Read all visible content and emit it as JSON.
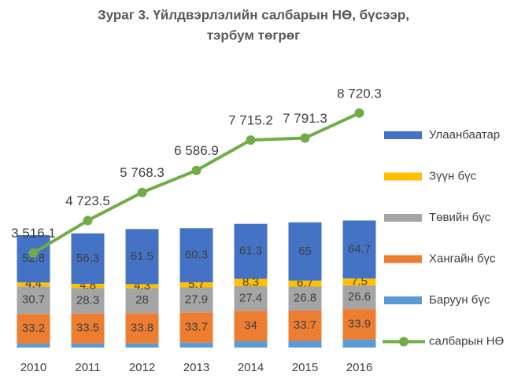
{
  "chart_data": {
    "type": "bar",
    "title": [
      "Зураг 3. Үйлдвэрлэлийн салбарын НӨ, бүсээр,",
      "тэрбум төгрөг"
    ],
    "categories": [
      "2010",
      "2011",
      "2012",
      "2013",
      "2014",
      "2015",
      "2016"
    ],
    "series": [
      {
        "name": "Баруун бүс",
        "color": "#5b9bd5",
        "values": [
          4.3,
          4.5,
          4.6,
          5.5,
          7.0,
          7.5,
          9.0
        ]
      },
      {
        "name": "Хангайн бүс",
        "color": "#ed7d31",
        "values": [
          33.2,
          33.5,
          33.8,
          33.7,
          34.0,
          33.7,
          33.9
        ]
      },
      {
        "name": "Төвийн бүс",
        "color": "#a5a5a5",
        "values": [
          30.7,
          28.3,
          28.0,
          27.9,
          27.4,
          26.8,
          26.6
        ]
      },
      {
        "name": "Зүүн бүс",
        "color": "#ffc000",
        "values": [
          4.4,
          4.8,
          4.3,
          5.7,
          8.3,
          6.7,
          7.5
        ]
      },
      {
        "name": "Улаанбаатар",
        "color": "#4472c4",
        "values": [
          52.8,
          56.3,
          61.5,
          60.3,
          61.3,
          65.0,
          64.7
        ]
      },
      {
        "name": "салбарын НӨ",
        "color": "#70ad47",
        "type": "line",
        "axis": "y2",
        "values": [
          3516.1,
          4723.5,
          5768.3,
          6586.9,
          7715.2,
          7791.3,
          8720.3
        ],
        "value_labels": [
          "3 516.1",
          "4 723.5",
          "5 768.3",
          "6 586.9",
          "7 715.2",
          "7 791.3",
          "8 720.3"
        ]
      }
    ],
    "segment_labels": [
      false,
      true,
      true,
      true,
      true
    ],
    "ylim": [
      0,
      300
    ],
    "y2lim": [
      0,
      10000
    ],
    "legend": "right"
  }
}
